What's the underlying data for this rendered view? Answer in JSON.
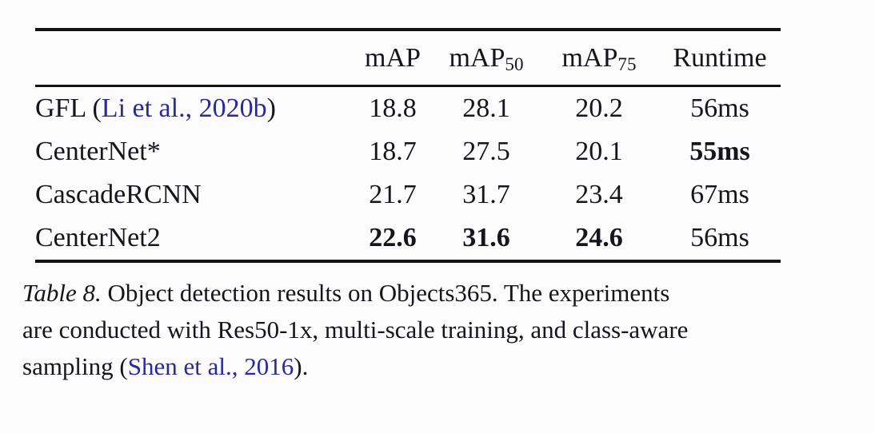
{
  "colors": {
    "background": "#fcfcfc",
    "text": "#15151d",
    "link": "#29299e",
    "rule": "#131316"
  },
  "table": {
    "header": {
      "map": "mAP",
      "map50_main": "mAP",
      "map50_sub": "50",
      "map75_main": "mAP",
      "map75_sub": "75",
      "runtime": "Runtime"
    },
    "rows": [
      {
        "label_pre": "GFL (",
        "label_link": "Li et al., 2020b",
        "label_post": ")",
        "map": "18.8",
        "map50": "28.1",
        "map75": "20.2",
        "runtime": "56ms"
      },
      {
        "label_pre": "CenterNet*",
        "map": "18.7",
        "map50": "27.5",
        "map75": "20.1",
        "runtime": "55ms"
      },
      {
        "label_pre": "CascadeRCNN",
        "map": "21.7",
        "map50": "31.7",
        "map75": "23.4",
        "runtime": "67ms"
      },
      {
        "label_pre": "CenterNet2",
        "map": "22.6",
        "map50": "31.6",
        "map75": "24.6",
        "runtime": "56ms"
      }
    ]
  },
  "caption": {
    "line1_italic": "Table 8.",
    "line1_rest": " Object detection results on Objects365. The experiments",
    "line2": "are conducted with Res50-1x, multi-scale training, and class-aware",
    "line3_pre": "sampling (",
    "line3_link": "Shen et al., 2016",
    "line3_post": ")."
  }
}
